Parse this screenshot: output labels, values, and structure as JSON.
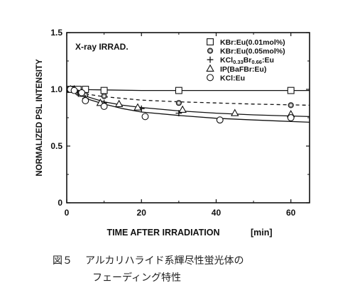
{
  "chart_data": {
    "type": "scatter",
    "annotation": "X-ray IRRAD.",
    "xlabel": "TIME AFTER IRRADIATION",
    "xunit": "[min]",
    "ylabel": "NORMALIZED PSL INTENSITY",
    "xlim": [
      0,
      65
    ],
    "ylim": [
      0,
      1.5
    ],
    "xticks": [
      "0",
      "20",
      "40",
      "60"
    ],
    "yticks": [
      "0",
      "0.5",
      "1.0",
      "1.5"
    ],
    "legend_position": "top-right",
    "series": [
      {
        "name": "KBr:Eu(0.01mol%)",
        "marker": "square",
        "line": "solid",
        "points": [
          [
            1,
            1.0
          ],
          [
            2,
            1.0
          ],
          [
            3,
            1.0
          ],
          [
            5,
            1.0
          ],
          [
            10,
            0.99
          ],
          [
            30,
            0.99
          ],
          [
            60,
            0.99
          ]
        ],
        "curve": [
          [
            0,
            1.0
          ],
          [
            10,
            0.995
          ],
          [
            20,
            0.99
          ],
          [
            30,
            0.99
          ],
          [
            40,
            0.99
          ],
          [
            50,
            0.99
          ],
          [
            65,
            0.99
          ]
        ]
      },
      {
        "name": "KBr:Eu(0.05mol%)",
        "marker": "dotted-circle",
        "line": "dashed",
        "points": [
          [
            1,
            1.0
          ],
          [
            2,
            0.99
          ],
          [
            3,
            0.97
          ],
          [
            5,
            0.95
          ],
          [
            10,
            0.94
          ],
          [
            30,
            0.88
          ],
          [
            60,
            0.86
          ]
        ],
        "curve": [
          [
            0,
            1.0
          ],
          [
            3,
            0.98
          ],
          [
            6,
            0.955
          ],
          [
            10,
            0.935
          ],
          [
            15,
            0.92
          ],
          [
            20,
            0.905
          ],
          [
            30,
            0.89
          ],
          [
            40,
            0.88
          ],
          [
            50,
            0.87
          ],
          [
            65,
            0.86
          ]
        ]
      },
      {
        "name": "KCl0.33Br0.66:Eu",
        "name_parts": {
          "base": "KCl",
          "sub1": "0.33",
          "mid": "Br",
          "sub2": "0.66",
          "end": ":Eu"
        },
        "marker": "plus",
        "line": "solid",
        "points": [
          [
            1,
            1.0
          ],
          [
            2,
            0.99
          ],
          [
            3,
            0.97
          ],
          [
            5,
            0.92
          ],
          [
            10,
            0.88
          ],
          [
            20,
            0.83
          ],
          [
            30,
            0.79
          ],
          [
            60,
            0.76
          ]
        ],
        "curve": [
          [
            0,
            1.0
          ],
          [
            3,
            0.97
          ],
          [
            6,
            0.93
          ],
          [
            10,
            0.89
          ],
          [
            15,
            0.86
          ],
          [
            20,
            0.84
          ],
          [
            30,
            0.81
          ],
          [
            40,
            0.79
          ],
          [
            50,
            0.775
          ],
          [
            65,
            0.76
          ]
        ]
      },
      {
        "name": "IP(BaFBr:Eu)",
        "marker": "triangle",
        "line": "none",
        "points": [
          [
            1,
            1.0
          ],
          [
            2,
            1.0
          ],
          [
            4,
            0.96
          ],
          [
            9,
            0.88
          ],
          [
            14,
            0.87
          ],
          [
            19,
            0.84
          ],
          [
            31,
            0.82
          ],
          [
            45,
            0.79
          ],
          [
            60,
            0.78
          ]
        ],
        "curve": []
      },
      {
        "name": "KCl:Eu",
        "marker": "circle",
        "line": "solid",
        "points": [
          [
            1,
            1.0
          ],
          [
            2,
            0.99
          ],
          [
            4,
            0.97
          ],
          [
            5,
            0.9
          ],
          [
            10,
            0.85
          ],
          [
            21,
            0.76
          ],
          [
            41,
            0.73
          ],
          [
            60,
            0.75
          ]
        ],
        "curve": [
          [
            0,
            1.0
          ],
          [
            3,
            0.96
          ],
          [
            6,
            0.91
          ],
          [
            10,
            0.87
          ],
          [
            15,
            0.83
          ],
          [
            20,
            0.8
          ],
          [
            30,
            0.77
          ],
          [
            40,
            0.745
          ],
          [
            50,
            0.73
          ],
          [
            65,
            0.71
          ]
        ]
      }
    ]
  },
  "caption": {
    "number": "図５",
    "line1": "アルカリハライド系輝尽性蛍光体の",
    "line2": "フェーディング特性"
  }
}
